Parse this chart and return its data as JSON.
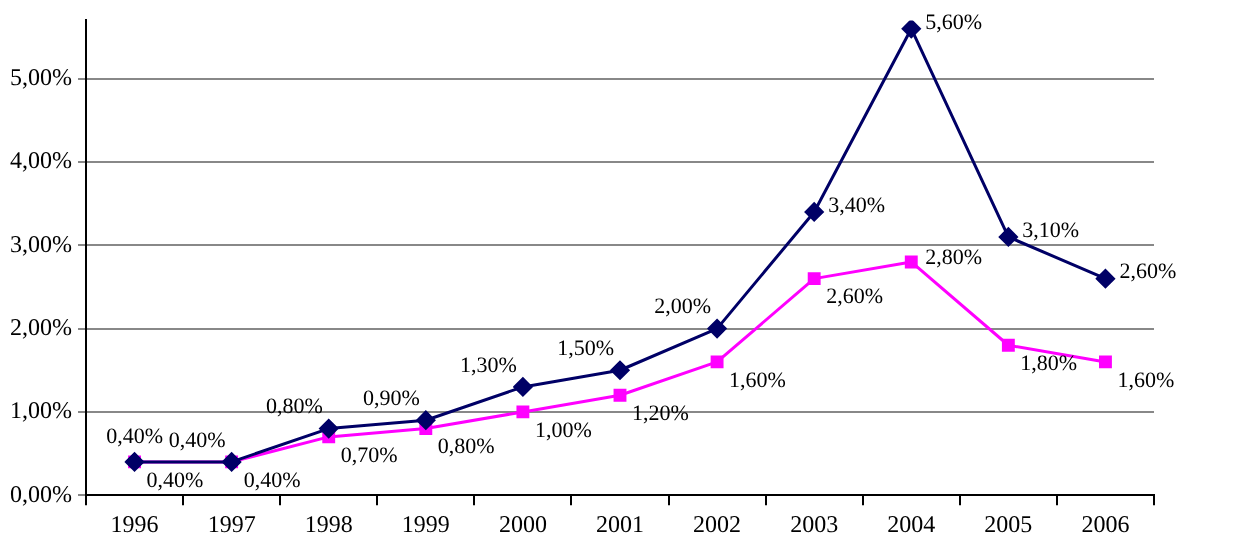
{
  "chart_data": {
    "type": "line",
    "categories": [
      "1996",
      "1997",
      "1998",
      "1999",
      "2000",
      "2001",
      "2002",
      "2003",
      "2004",
      "2005",
      "2006"
    ],
    "series": [
      {
        "color": "#000066",
        "marker": "diamond",
        "values": [
          0.4,
          0.4,
          0.8,
          0.9,
          1.3,
          1.5,
          2.0,
          3.4,
          5.6,
          3.1,
          2.6
        ],
        "value_labels": [
          "0,40%",
          "0,40%",
          "0,80%",
          "0,90%",
          "1,30%",
          "1,50%",
          "2,00%",
          "3,40%",
          "5,60%",
          "3,10%",
          "2,60%"
        ]
      },
      {
        "color": "#ff00ff",
        "marker": "square",
        "values": [
          0.4,
          0.4,
          0.7,
          0.8,
          1.0,
          1.2,
          1.6,
          2.6,
          2.8,
          1.8,
          1.6
        ],
        "value_labels": [
          "0,40%",
          "0,40%",
          "0,70%",
          "0,80%",
          "1,00%",
          "1,20%",
          "1,60%",
          "2,60%",
          "2,80%",
          "1,80%",
          "1,60%"
        ]
      }
    ],
    "ylim": [
      0,
      5.7
    ],
    "yticks": [
      {
        "value": 0,
        "label": "0,00%"
      },
      {
        "value": 1,
        "label": "1,00%"
      },
      {
        "value": 2,
        "label": "2,00%"
      },
      {
        "value": 3,
        "label": "3,00%"
      },
      {
        "value": 4,
        "label": "4,00%"
      },
      {
        "value": 5,
        "label": "5,00%"
      }
    ],
    "grid": "y",
    "line_style": "solid",
    "legend": false
  }
}
